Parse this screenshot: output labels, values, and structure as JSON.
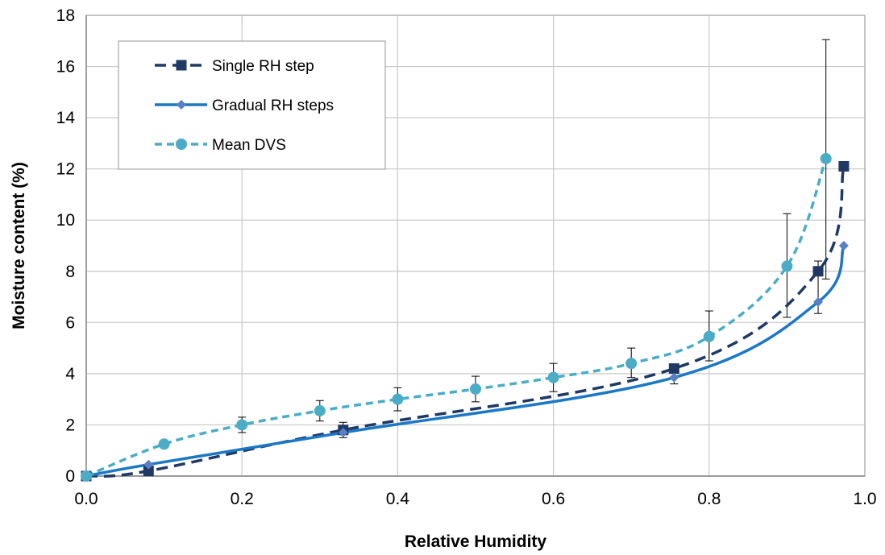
{
  "chart_data": {
    "type": "line",
    "title": "",
    "xlabel": "Relative Humidity",
    "ylabel": "Moisture content (%)",
    "xlim": [
      0.0,
      1.0
    ],
    "ylim": [
      0,
      18
    ],
    "x_ticks": [
      "0.0",
      "0.2",
      "0.4",
      "0.6",
      "0.8",
      "1.0"
    ],
    "y_ticks": [
      "0",
      "2",
      "4",
      "6",
      "8",
      "10",
      "12",
      "14",
      "16",
      "18"
    ],
    "grid": true,
    "legend_position": "top-left",
    "series": [
      {
        "name": "Single RH step",
        "style": "dashed",
        "marker": "square",
        "color": "#1f3864",
        "x": [
          0.0,
          0.08,
          0.33,
          0.755,
          0.94,
          0.973
        ],
        "y": [
          0.0,
          0.2,
          1.8,
          4.2,
          8.0,
          12.1
        ]
      },
      {
        "name": "Gradual RH steps",
        "style": "solid",
        "marker": "diamond",
        "color": "#1c78c6",
        "marker_color": "#5b7fc4",
        "x": [
          0.0,
          0.08,
          0.33,
          0.755,
          0.94,
          0.973
        ],
        "y": [
          0.0,
          0.45,
          1.7,
          3.85,
          6.8,
          9.0
        ]
      },
      {
        "name": "Mean DVS",
        "style": "dotted",
        "marker": "circle",
        "color": "#4bacc6",
        "x": [
          0.0,
          0.1,
          0.2,
          0.3,
          0.4,
          0.5,
          0.6,
          0.7,
          0.8,
          0.9,
          0.95
        ],
        "y": [
          0.0,
          1.25,
          2.0,
          2.55,
          3.0,
          3.4,
          3.85,
          4.4,
          5.45,
          8.2,
          12.4
        ],
        "error_low": [
          null,
          null,
          1.7,
          2.15,
          2.55,
          2.9,
          3.3,
          3.85,
          4.5,
          6.2,
          7.7
        ],
        "error_high": [
          null,
          null,
          2.3,
          2.95,
          3.45,
          3.9,
          4.4,
          5.0,
          6.45,
          10.25,
          17.05
        ]
      }
    ],
    "extra_errorbars": [
      {
        "x": 0.33,
        "low": 1.5,
        "high": 2.1
      },
      {
        "x": 0.755,
        "low": 3.6,
        "high": null
      },
      {
        "x": 0.94,
        "low": 6.35,
        "high": 8.4
      }
    ]
  }
}
